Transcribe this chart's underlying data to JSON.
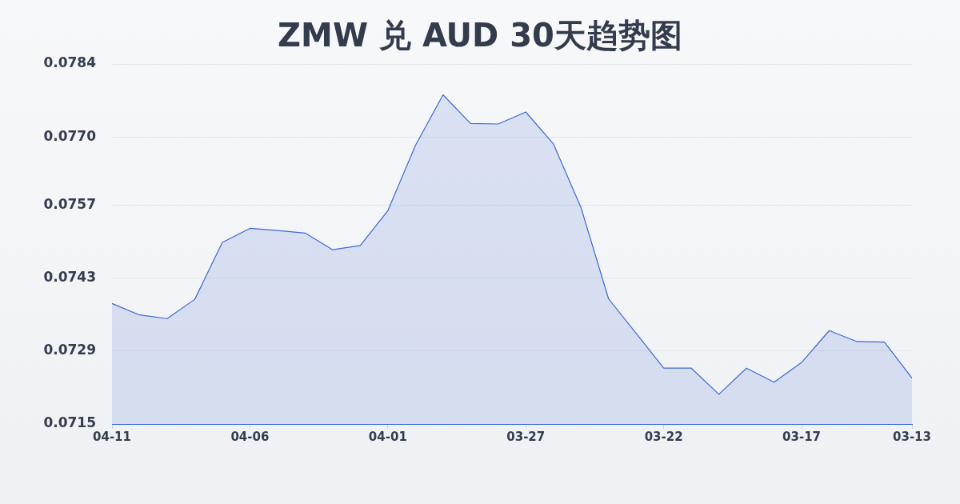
{
  "chart_data": {
    "type": "area",
    "title": "ZMW 兑 AUD 30天趋势图",
    "categories": [
      "04-11",
      null,
      null,
      null,
      null,
      "04-06",
      null,
      null,
      null,
      null,
      "04-01",
      null,
      null,
      null,
      null,
      "03-27",
      null,
      null,
      null,
      null,
      "03-22",
      null,
      null,
      null,
      null,
      "03-17",
      null,
      null,
      null,
      "03-13"
    ],
    "values": [
      0.07381,
      0.07359,
      0.07352,
      0.07389,
      0.07498,
      0.07525,
      0.07521,
      0.07516,
      0.07484,
      0.07492,
      0.07559,
      0.07684,
      0.07781,
      0.07726,
      0.07725,
      0.07748,
      0.07687,
      0.07565,
      0.0739,
      0.07324,
      0.07257,
      0.07257,
      0.07207,
      0.07257,
      0.0723,
      0.07268,
      0.07329,
      0.07308,
      0.07307,
      0.07238
    ],
    "color": "#3c67d3",
    "ylim": [
      0.0715,
      0.0784
    ],
    "yticks": [
      0.0715,
      0.0729,
      0.0743,
      0.0757,
      {
        "value": 0.077,
        "label": "0.0770"
      },
      0.0784
    ],
    "grid": "y"
  }
}
